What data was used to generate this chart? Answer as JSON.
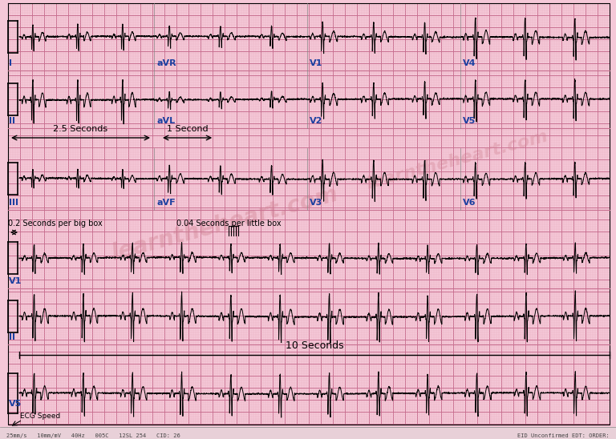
{
  "bg_color": "#f5c8d8",
  "grid_minor_color": "#e8adc0",
  "grid_major_color": "#c87090",
  "fig_width": 7.68,
  "fig_height": 5.48,
  "dpi": 100,
  "bottom_text_left": "25mm/s   10mm/mV   40Hz   005C   12SL 254   CID: 26",
  "bottom_text_right": "EID Unconfirmed EDT: ORDER:",
  "watermark1": "learntheheart.com",
  "watermark2": "learntheheart.com",
  "label_color": "#1a3fa0",
  "row_labels_3col": [
    "I",
    "II",
    "III"
  ],
  "row_labels_long": [
    "V1",
    "II",
    "V5"
  ],
  "col_labels_row1": [
    "aVR",
    "V1",
    "V4"
  ],
  "col_labels_row2": [
    "aVL",
    "V2",
    "V5"
  ],
  "col_labels_row3": [
    "aVF",
    "V3",
    "V6"
  ],
  "label_25sec": "2.5 Seconds",
  "label_1sec": "1 Second",
  "label_02sec": "0.2 Seconds per big box",
  "label_004sec": "0.04 Seconds per little box",
  "label_10sec": "10 Seconds",
  "ecg_speed_label": "ECG Speed"
}
